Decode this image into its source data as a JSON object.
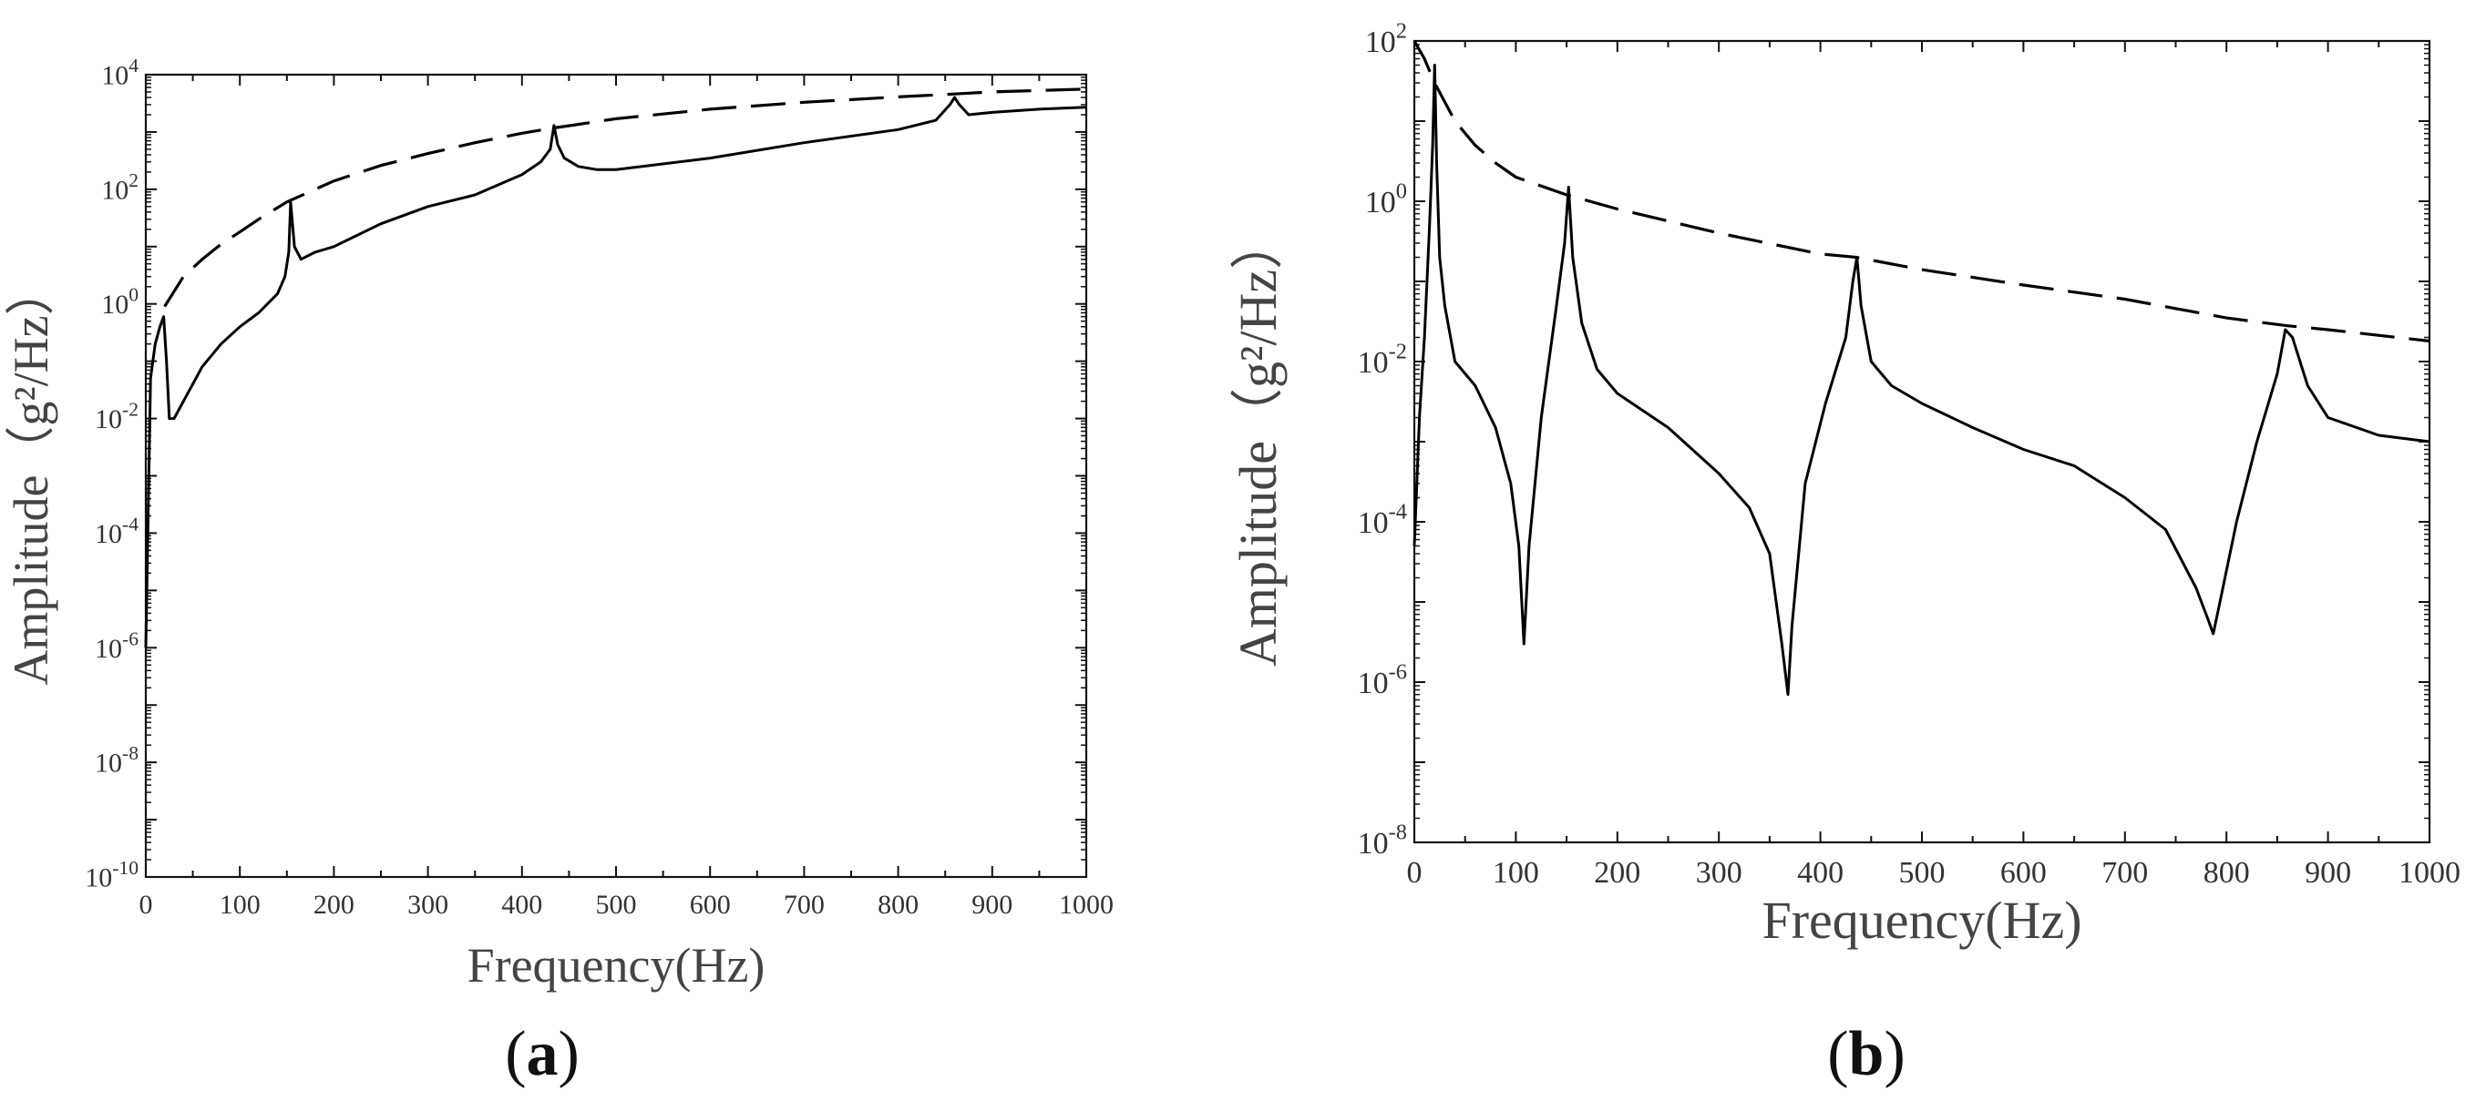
{
  "chart_data": [
    {
      "panel_label": "a",
      "type": "line",
      "xlabel": "Frequency(Hz)",
      "ylabel_main": "Amplitude",
      "ylabel_unit": "g²/Hz",
      "xlim": [
        0,
        1000
      ],
      "ylim": [
        1e-10,
        10000.0
      ],
      "yscale": "log",
      "grid": false,
      "xticks": [
        0,
        100,
        200,
        300,
        400,
        500,
        600,
        700,
        800,
        900,
        1000
      ],
      "yticks_exp": [
        -10,
        -8,
        -6,
        -4,
        -2,
        0,
        2,
        4
      ],
      "series": [
        {
          "style": "solid",
          "x": [
            0,
            5,
            10,
            15,
            19,
            22,
            25,
            30,
            40,
            60,
            80,
            100,
            120,
            140,
            148,
            152,
            154,
            158,
            165,
            180,
            200,
            250,
            300,
            350,
            400,
            420,
            430,
            434,
            438,
            445,
            460,
            480,
            500,
            600,
            700,
            800,
            840,
            855,
            860,
            865,
            875,
            900,
            950,
            1000
          ],
          "y": [
            1e-06,
            0.05,
            0.2,
            0.4,
            0.6,
            0.1,
            0.01,
            0.01,
            0.02,
            0.08,
            0.2,
            0.4,
            0.7,
            1.5,
            3,
            8,
            60,
            10,
            6,
            8,
            10,
            25,
            50,
            80,
            180,
            300,
            500,
            1300,
            600,
            350,
            250,
            220,
            220,
            350,
            650,
            1100,
            1600,
            3000,
            4000,
            3000,
            2000,
            2200,
            2500,
            2700
          ]
        },
        {
          "style": "dashed",
          "x": [
            20,
            40,
            60,
            80,
            100,
            120,
            150,
            200,
            250,
            300,
            350,
            400,
            430,
            500,
            600,
            700,
            800,
            860,
            900,
            1000
          ],
          "y": [
            0.9,
            3,
            6,
            11,
            18,
            30,
            60,
            140,
            260,
            420,
            650,
            950,
            1150,
            1700,
            2500,
            3300,
            4100,
            4600,
            5000,
            5600
          ]
        }
      ]
    },
    {
      "panel_label": "b",
      "type": "line",
      "xlabel": "Frequency(Hz)",
      "ylabel_main": "Amplitude",
      "ylabel_unit": "g²/Hz",
      "xlim": [
        0,
        1000
      ],
      "ylim": [
        1e-08,
        100.0
      ],
      "yscale": "log",
      "grid": false,
      "xticks": [
        0,
        100,
        200,
        300,
        400,
        500,
        600,
        700,
        800,
        900,
        1000
      ],
      "yticks_exp": [
        -8,
        -6,
        -4,
        -2,
        0,
        2
      ],
      "series": [
        {
          "style": "solid",
          "x": [
            0,
            5,
            10,
            15,
            18,
            20,
            22,
            25,
            30,
            40,
            60,
            80,
            95,
            103,
            108,
            113,
            125,
            140,
            148,
            152,
            156,
            165,
            180,
            200,
            250,
            300,
            330,
            350,
            362,
            368,
            372,
            385,
            405,
            425,
            432,
            436,
            440,
            450,
            470,
            500,
            550,
            600,
            650,
            700,
            740,
            770,
            782,
            787,
            792,
            810,
            830,
            850,
            858,
            865,
            880,
            900,
            950,
            1000
          ],
          "y": [
            5e-05,
            0.002,
            0.02,
            0.5,
            5,
            50,
            3,
            0.2,
            0.05,
            0.01,
            0.005,
            0.0015,
            0.0003,
            5e-05,
            3e-06,
            5e-05,
            0.002,
            0.05,
            0.3,
            1.5,
            0.2,
            0.03,
            0.008,
            0.004,
            0.0015,
            0.0004,
            0.00015,
            4e-05,
            3e-06,
            7e-07,
            5e-06,
            0.0003,
            0.003,
            0.02,
            0.1,
            0.2,
            0.05,
            0.01,
            0.005,
            0.003,
            0.0015,
            0.0008,
            0.0005,
            0.0002,
            8e-05,
            1.5e-05,
            6e-06,
            4e-06,
            8e-06,
            0.0001,
            0.001,
            0.007,
            0.025,
            0.02,
            0.005,
            0.002,
            0.0012,
            0.001
          ]
        },
        {
          "style": "dashed",
          "x": [
            0,
            10,
            20,
            40,
            60,
            80,
            100,
            150,
            200,
            300,
            400,
            435,
            500,
            600,
            700,
            800,
            860,
            900,
            1000
          ],
          "y": [
            100,
            60,
            30,
            10,
            5,
            3,
            2,
            1.2,
            0.8,
            0.4,
            0.22,
            0.2,
            0.14,
            0.09,
            0.06,
            0.035,
            0.028,
            0.025,
            0.018
          ]
        }
      ]
    }
  ]
}
